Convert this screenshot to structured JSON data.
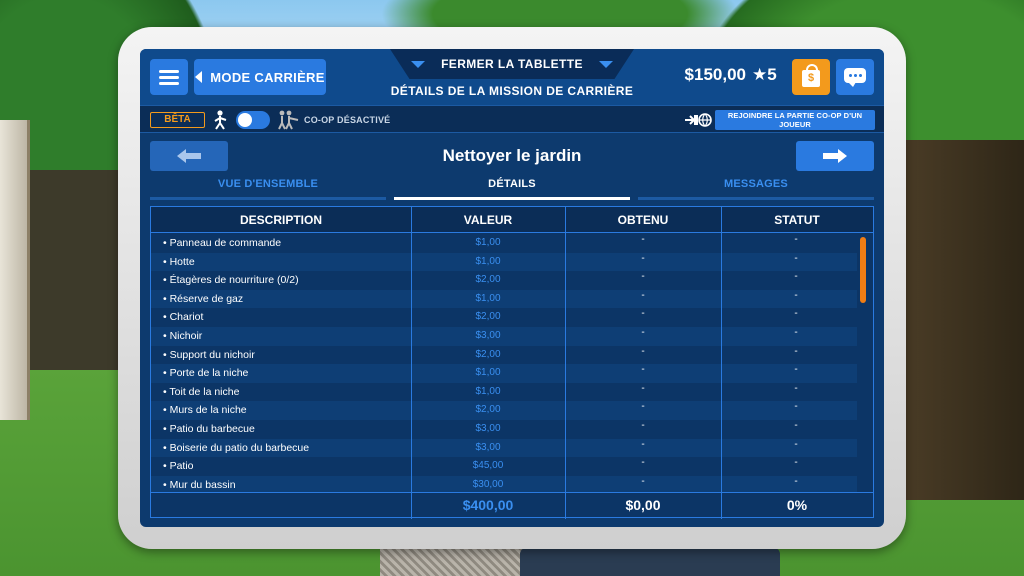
{
  "header": {
    "menu_icon": "hamburger-icon",
    "career_mode_label": "MODE CARRIÈRE",
    "close_tablet_label": "FERMER LA TABLETTE",
    "mission_details_title": "DÉTAILS DE LA MISSION DE CARRIÈRE",
    "money": "$150,00",
    "stars": "★5",
    "shop_icon": "shopping-bag-icon",
    "chat_icon": "chat-bubble-icon"
  },
  "coop": {
    "beta_label": "BÊTA",
    "toggle_on": true,
    "status_label": "CO-OP DÉSACTIVÉ",
    "join_label": "REJOINDRE LA PARTIE CO-OP D'UN JOUEUR"
  },
  "mission": {
    "name": "Nettoyer le jardin"
  },
  "tabs": [
    {
      "label": "VUE D'ENSEMBLE",
      "active": false
    },
    {
      "label": "DÉTAILS",
      "active": true
    },
    {
      "label": "MESSAGES",
      "active": false
    }
  ],
  "table": {
    "columns": [
      "DESCRIPTION",
      "VALEUR",
      "OBTENU",
      "STATUT"
    ],
    "rows": [
      {
        "description": "• Panneau de commande",
        "value": "$1,00",
        "earned": "-",
        "status": "-"
      },
      {
        "description": "• Hotte",
        "value": "$1,00",
        "earned": "-",
        "status": "-"
      },
      {
        "description": "• Étagères de nourriture (0/2)",
        "value": "$2,00",
        "earned": "-",
        "status": "-"
      },
      {
        "description": "• Réserve de gaz",
        "value": "$1,00",
        "earned": "-",
        "status": "-"
      },
      {
        "description": "• Chariot",
        "value": "$2,00",
        "earned": "-",
        "status": "-"
      },
      {
        "description": "• Nichoir",
        "value": "$3,00",
        "earned": "-",
        "status": "-"
      },
      {
        "description": "• Support du nichoir",
        "value": "$2,00",
        "earned": "-",
        "status": "-"
      },
      {
        "description": "• Porte de la niche",
        "value": "$1,00",
        "earned": "-",
        "status": "-"
      },
      {
        "description": "• Toit de la niche",
        "value": "$1,00",
        "earned": "-",
        "status": "-"
      },
      {
        "description": "• Murs de la niche",
        "value": "$2,00",
        "earned": "-",
        "status": "-"
      },
      {
        "description": "• Patio du barbecue",
        "value": "$3,00",
        "earned": "-",
        "status": "-"
      },
      {
        "description": "• Boiserie du patio du barbecue",
        "value": "$3,00",
        "earned": "-",
        "status": "-"
      },
      {
        "description": "• Patio",
        "value": "$45,00",
        "earned": "-",
        "status": "-"
      },
      {
        "description": "• Mur du bassin",
        "value": "$30,00",
        "earned": "-",
        "status": "-"
      }
    ],
    "totals": {
      "value": "$400,00",
      "earned": "$0,00",
      "status": "0%"
    }
  },
  "colors": {
    "accent": "#2a7ae0",
    "value_text": "#3a8ff0",
    "orange": "#f39a1c",
    "panel": "#0d3a6e"
  }
}
